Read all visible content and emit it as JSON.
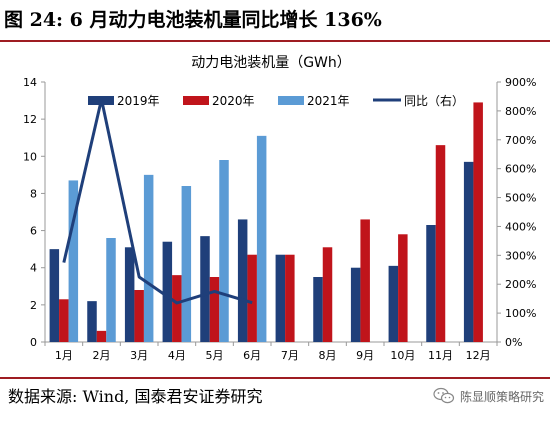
{
  "figure_title": "图 24:  6 月动力电池装机量同比增长 136%",
  "source_text": "数据来源: Wind, 国泰君安证券研究",
  "watermark": {
    "text": "陈显顺策略研究",
    "icon": "wechat-icon"
  },
  "colors": {
    "s2019": "#1f3f7a",
    "s2020": "#c0141b",
    "s2021": "#5b9bd5",
    "yoy": "#1f3f7a",
    "rule": "#9e1c22"
  },
  "chart_data": {
    "type": "bar",
    "title": "动力电池装机量（GWh）",
    "categories": [
      "1月",
      "2月",
      "3月",
      "4月",
      "5月",
      "6月",
      "7月",
      "8月",
      "9月",
      "10月",
      "11月",
      "12月"
    ],
    "series": [
      {
        "name": "2019年",
        "type": "bar",
        "axis": "left",
        "values": [
          5.0,
          2.2,
          5.1,
          5.4,
          5.7,
          6.6,
          4.7,
          3.5,
          4.0,
          4.1,
          6.3,
          9.7
        ]
      },
      {
        "name": "2020年",
        "type": "bar",
        "axis": "left",
        "values": [
          2.3,
          0.6,
          2.8,
          3.6,
          3.5,
          4.7,
          4.7,
          5.1,
          6.6,
          5.8,
          10.6,
          12.9
        ]
      },
      {
        "name": "2021年",
        "type": "bar",
        "axis": "left",
        "values": [
          8.7,
          5.6,
          9.0,
          8.4,
          9.8,
          11.1,
          null,
          null,
          null,
          null,
          null,
          null
        ]
      },
      {
        "name": "同比（右）",
        "type": "line",
        "axis": "right",
        "values": [
          275,
          840,
          225,
          135,
          175,
          136,
          null,
          null,
          null,
          null,
          null,
          null
        ]
      }
    ],
    "y_left": {
      "min": 0,
      "max": 14,
      "step": 2,
      "ticks": [
        "0",
        "2",
        "4",
        "6",
        "8",
        "10",
        "12",
        "14"
      ]
    },
    "y_right": {
      "min": 0,
      "max": 900,
      "step": 100,
      "ticks": [
        "0%",
        "100%",
        "200%",
        "300%",
        "400%",
        "500%",
        "600%",
        "700%",
        "800%",
        "900%"
      ]
    },
    "grid": false,
    "legend_position": "top"
  }
}
